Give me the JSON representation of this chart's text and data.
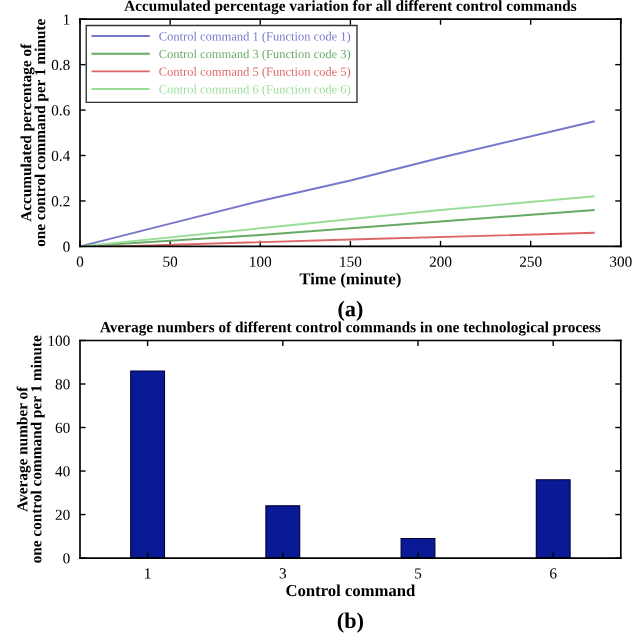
{
  "chart_data": [
    {
      "type": "line",
      "title": "Accumulated percentage variation for all different control commands",
      "xlabel": "Time (minute)",
      "ylabel": "Accumulated percentage of\none control command per 1 minute",
      "annotations": [
        "(a)"
      ],
      "series": [
        {
          "name": "Control command 1 (Function code 1)",
          "color": "#7777cc",
          "x": [
            0,
            50,
            100,
            150,
            200,
            285
          ],
          "values": [
            0,
            0.1,
            0.2,
            0.29,
            0.39,
            0.55
          ]
        },
        {
          "name": "Control command 3 (Function code 3)",
          "color": "#66aa66",
          "x": [
            0,
            100,
            200,
            285
          ],
          "values": [
            0,
            0.05,
            0.11,
            0.16
          ]
        },
        {
          "name": "Control command 5 (Function code 5)",
          "color": "#dd6666",
          "x": [
            0,
            20,
            150,
            285
          ],
          "values": [
            0,
            0,
            0.03,
            0.06
          ]
        },
        {
          "name": "Control command 6 (Function code 6)",
          "color": "#99dd99",
          "x": [
            0,
            100,
            200,
            285
          ],
          "values": [
            0,
            0.08,
            0.16,
            0.22
          ]
        }
      ],
      "xlim": [
        0,
        300
      ],
      "xticks": [
        0,
        50,
        100,
        150,
        200,
        250,
        300
      ],
      "ylim": [
        0,
        1
      ],
      "yticks": [
        0,
        0.2,
        0.4,
        0.6,
        0.8,
        1
      ],
      "legend": "top left",
      "grid": false
    },
    {
      "type": "bar",
      "title": "Average numbers of different control commands in one technological process",
      "xlabel": "Control command",
      "ylabel": "Average number of\none control command per 1 minute",
      "annotations": [
        "(b)"
      ],
      "categories": [
        "1",
        "3",
        "5",
        "6"
      ],
      "values": [
        86,
        24,
        9,
        36
      ],
      "color": "#0a1a96",
      "ylim": [
        0,
        100
      ],
      "yticks": [
        0,
        20,
        40,
        60,
        80,
        100
      ],
      "grid": false
    }
  ]
}
